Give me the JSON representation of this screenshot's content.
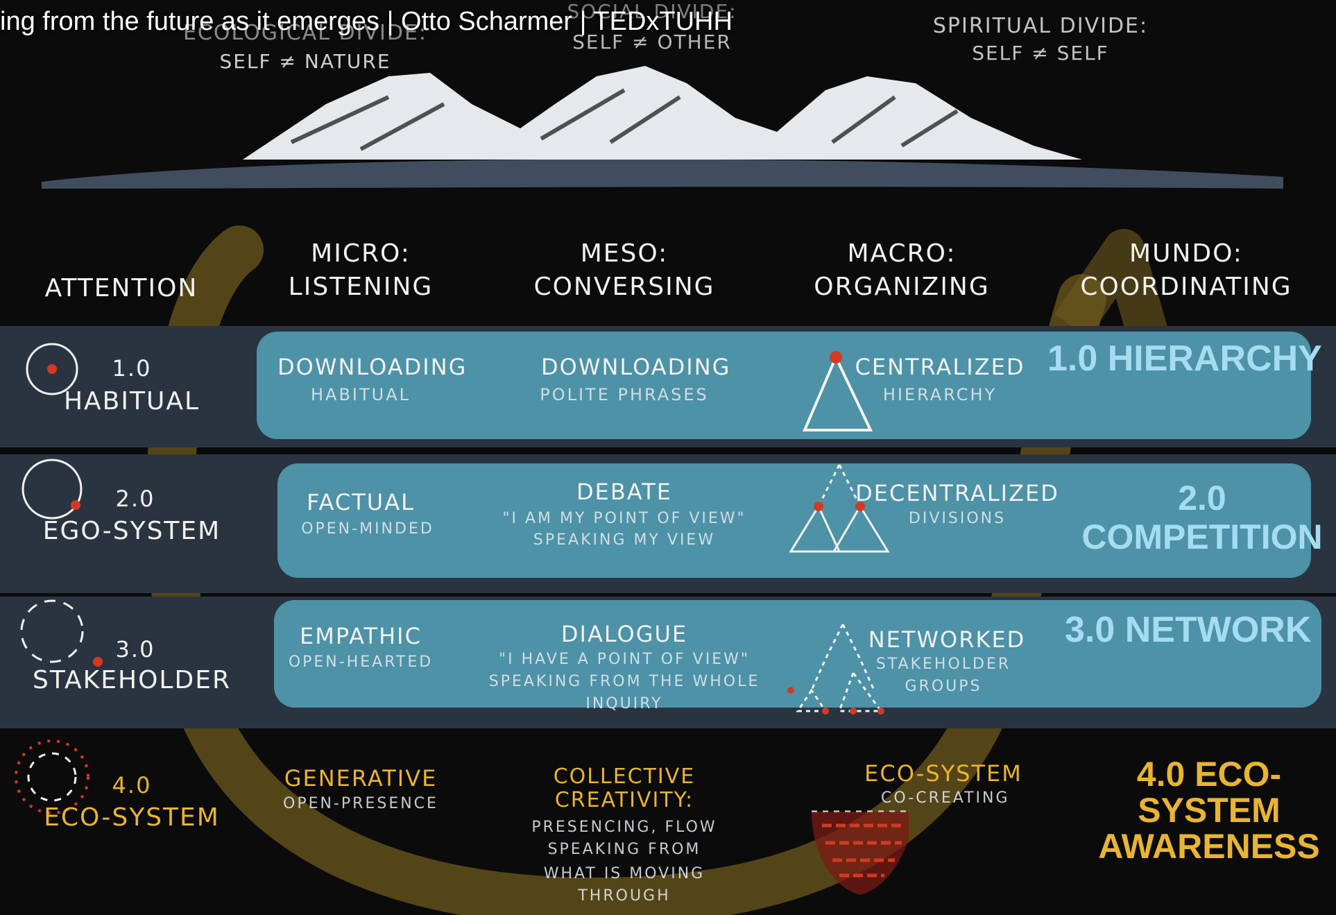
{
  "video": {
    "title": "ing from the future as it emerges | Otto Scharmer | TEDxTUHH"
  },
  "divides": [
    {
      "title": "ECOLOGICAL DIVIDE:",
      "sub": "SELF ≠ NATURE"
    },
    {
      "title": "SOCIAL DIVIDE:",
      "sub": "SELF ≠ OTHER"
    },
    {
      "title": "SPIRITUAL DIVIDE:",
      "sub": "SELF ≠ SELF"
    }
  ],
  "headers": {
    "attention": "ATTENTION",
    "micro": {
      "title": "MICRO:",
      "sub": "LISTENING"
    },
    "meso": {
      "title": "MESO:",
      "sub": "CONVERSING"
    },
    "macro": {
      "title": "MACRO:",
      "sub": "ORGANIZING"
    },
    "mundo": {
      "title": "MUNDO:",
      "sub": "COORDINATING"
    }
  },
  "rows": [
    {
      "num": "1.0",
      "level": "HABITUAL",
      "micro": {
        "title": "DOWNLOADING",
        "sub": "HABITUAL"
      },
      "meso": {
        "title": "DOWNLOADING",
        "sub1": "POLITE PHRASES",
        "sub2": "",
        "sub3": ""
      },
      "macro": {
        "title": "CENTRALIZED",
        "sub1": "HIERARCHY",
        "sub2": ""
      },
      "mundo": "1.0 HIERARCHY"
    },
    {
      "num": "2.0",
      "level": "EGO-SYSTEM",
      "micro": {
        "title": "FACTUAL",
        "sub": "OPEN-MINDED"
      },
      "meso": {
        "title": "DEBATE",
        "sub1": "\"I AM MY POINT OF VIEW\"",
        "sub2": "SPEAKING MY VIEW",
        "sub3": ""
      },
      "macro": {
        "title": "DECENTRALIZED",
        "sub1": "DIVISIONS",
        "sub2": ""
      },
      "mundo": "2.0 COMPETITION"
    },
    {
      "num": "3.0",
      "level": "STAKEHOLDER",
      "micro": {
        "title": "EMPATHIC",
        "sub": "OPEN-HEARTED"
      },
      "meso": {
        "title": "DIALOGUE",
        "sub1": "\"I HAVE A POINT OF VIEW\"",
        "sub2": "SPEAKING FROM THE WHOLE",
        "sub3": "INQUIRY"
      },
      "macro": {
        "title": "NETWORKED",
        "sub1": "STAKEHOLDER",
        "sub2": "GROUPS"
      },
      "mundo": "3.0 NETWORK"
    },
    {
      "num": "4.0",
      "level": "ECO-SYSTEM",
      "micro": {
        "title": "GENERATIVE",
        "sub": "OPEN-PRESENCE"
      },
      "meso": {
        "title": "COLLECTIVE CREATIVITY:",
        "sub1": "PRESENCING, FLOW",
        "sub2": "SPEAKING FROM",
        "sub3": "WHAT IS MOVING THROUGH"
      },
      "macro": {
        "title": "ECO-SYSTEM",
        "sub1": "CO-CREATING",
        "sub2": ""
      },
      "mundo": "4.0 ECO-SYSTEM AWARENESS"
    }
  ]
}
